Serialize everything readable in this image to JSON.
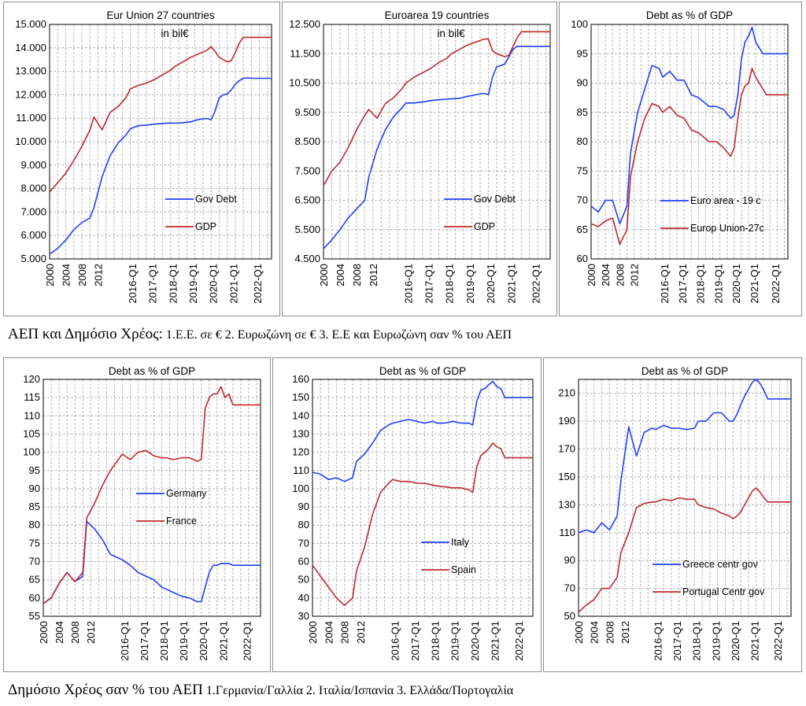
{
  "captions": {
    "row1_main": "ΑΕΠ και Δημόσιο Χρέος:",
    "row1_detail": "1.Ε.Ε. σε € 2. Ευρωζώνη σε € 3. Ε.Ε και Ευρωζώνη σαν % του ΑΕΠ",
    "row2_main": "Δημόσιο Χρέος σαν % του ΑΕΠ",
    "row2_detail": "1.Γερμανία/Γαλλία 2. Ιταλία/Ισπανία 3. Ελλάδα/Πορτογαλία"
  },
  "colors": {
    "blue": "#1f3fff",
    "red": "#c0282d",
    "grid": "#b5b5b5",
    "frame": "#8c8c8c"
  },
  "chart_data": [
    {
      "type": "line",
      "title": "Eur Union 27 countries",
      "subtitle": "in bil€",
      "x_tick_labels": [
        "2000",
        "2004",
        "2008",
        "2012",
        "2016-Q1",
        "2017-Q1",
        "2018-Q1",
        "2019-Q1",
        "2020-Q1",
        "2021-Q1",
        "2022-Q1"
      ],
      "x": [
        0,
        0.8,
        1.6,
        2.4,
        3.2,
        4,
        4.4,
        5.2,
        6,
        6.8,
        7.6,
        8,
        8.8,
        9.6,
        10.4,
        11.2,
        12,
        12.4,
        13.2,
        14,
        14.8,
        15.6,
        16,
        16.4,
        16.8,
        17.2,
        17.6,
        18,
        18.4,
        18.8,
        19.2,
        19.6,
        20,
        20.4,
        20.8,
        21.2,
        21.6,
        22
      ],
      "ylim": [
        5000,
        15000
      ],
      "y_ticks": [
        5000,
        6000,
        7000,
        8000,
        9000,
        10000,
        11000,
        12000,
        13000,
        14000,
        15000
      ],
      "y_tick_labels": [
        "5.000",
        "6.000",
        "7.000",
        "8.000",
        "9.000",
        "10.000",
        "11.000",
        "12.000",
        "13.000",
        "14.000",
        "15.000"
      ],
      "legend": "lower-right",
      "grid": true,
      "series": [
        {
          "name": "Gov Debt",
          "color": "#1f3fff",
          "values": [
            5200,
            5450,
            5800,
            6250,
            6550,
            6750,
            7200,
            8500,
            9400,
            9950,
            10300,
            10550,
            10680,
            10700,
            10750,
            10780,
            10800,
            10790,
            10810,
            10850,
            10950,
            10990,
            10930,
            11300,
            11850,
            12000,
            12030,
            12200,
            12450,
            12600,
            12700,
            12720,
            12700,
            12700,
            12700,
            12700,
            12700,
            12700
          ]
        },
        {
          "name": "GDP",
          "color": "#c0282d",
          "values": [
            7850,
            8250,
            8650,
            9200,
            9800,
            10500,
            11050,
            10500,
            11250,
            11500,
            11900,
            12250,
            12400,
            12500,
            12650,
            12850,
            13050,
            13200,
            13400,
            13600,
            13750,
            13900,
            14050,
            13850,
            13600,
            13500,
            13400,
            13450,
            13800,
            14200,
            14450,
            14450,
            14450,
            14450,
            14450,
            14450,
            14450,
            14450
          ]
        }
      ]
    },
    {
      "type": "line",
      "title": "Euroarea 19 countries",
      "subtitle": "in bil€",
      "x_tick_labels": [
        "2000",
        "2004",
        "2008",
        "2012",
        "2016-Q1",
        "2017-Q1",
        "2018-Q1",
        "2019-Q1",
        "2020-Q1",
        "2021-Q1",
        "2022-Q1"
      ],
      "x": [
        0,
        0.8,
        1.6,
        2.4,
        3.2,
        4,
        4.4,
        5.2,
        6,
        6.8,
        7.6,
        8,
        8.8,
        9.6,
        10.4,
        11.2,
        12,
        12.4,
        13.2,
        14,
        14.8,
        15.6,
        16,
        16.4,
        16.8,
        17.2,
        17.6,
        18,
        18.4,
        18.8,
        19.2,
        19.6,
        20,
        20.4,
        20.8,
        21.2,
        21.6,
        22
      ],
      "ylim": [
        4500,
        12500
      ],
      "y_ticks": [
        4500,
        5500,
        6500,
        7500,
        8500,
        9500,
        10500,
        11500,
        12500
      ],
      "y_tick_labels": [
        "4.500",
        "5.500",
        "6.500",
        "7.500",
        "8.500",
        "9.500",
        "10.500",
        "11.500",
        "12.500"
      ],
      "legend": "lower-right",
      "grid": true,
      "series": [
        {
          "name": "Gov Debt",
          "color": "#1f3fff",
          "values": [
            4850,
            5150,
            5500,
            5900,
            6200,
            6500,
            7300,
            8250,
            8900,
            9350,
            9650,
            9820,
            9820,
            9850,
            9900,
            9930,
            9950,
            9960,
            9980,
            10050,
            10100,
            10150,
            10100,
            10700,
            11050,
            11100,
            11150,
            11400,
            11650,
            11750,
            11750,
            11750,
            11750,
            11750,
            11750,
            11750,
            11750,
            11750
          ]
        },
        {
          "name": "GDP",
          "color": "#c0282d",
          "values": [
            7000,
            7500,
            7800,
            8300,
            8900,
            9400,
            9600,
            9300,
            9800,
            10000,
            10300,
            10500,
            10700,
            10850,
            11000,
            11200,
            11350,
            11500,
            11650,
            11800,
            11900,
            12000,
            12000,
            11600,
            11500,
            11450,
            11400,
            11450,
            11750,
            12050,
            12250,
            12250,
            12250,
            12250,
            12250,
            12250,
            12250,
            12250
          ]
        }
      ]
    },
    {
      "type": "line",
      "title": "Debt as % of GDP",
      "x_tick_labels": [
        "2000",
        "2004",
        "2008",
        "2012",
        "2016-Q1",
        "2017-Q1",
        "2018-Q1",
        "2019-Q1",
        "2020-Q1",
        "2021-Q1",
        "2022-Q1"
      ],
      "x": [
        0,
        0.8,
        1.6,
        2.4,
        3.2,
        4,
        4.4,
        5.2,
        6,
        6.8,
        7.6,
        8,
        8.8,
        9.6,
        10.4,
        11.2,
        12,
        12.4,
        13.2,
        14,
        14.8,
        15.6,
        16,
        16.4,
        16.8,
        17.2,
        17.6,
        18,
        18.4,
        18.8,
        19.2,
        19.6,
        20,
        20.4,
        20.8,
        21.2,
        21.6,
        22
      ],
      "ylim": [
        60,
        100
      ],
      "y_ticks": [
        60,
        65,
        70,
        75,
        80,
        85,
        90,
        95,
        100
      ],
      "y_tick_labels": [
        "60",
        "65",
        "70",
        "75",
        "80",
        "85",
        "90",
        "95",
        "100"
      ],
      "legend": "lower-right",
      "grid": true,
      "series": [
        {
          "name": "Euro area - 19 c",
          "color": "#1f3fff",
          "values": [
            69,
            68,
            70,
            70,
            66,
            69,
            78,
            85,
            89,
            93,
            92.5,
            91,
            92,
            90.5,
            90.5,
            88,
            87.5,
            87,
            86,
            86,
            85.5,
            84,
            84.5,
            88,
            94,
            97,
            98,
            99.5,
            97,
            96,
            95,
            95,
            95,
            95,
            95,
            95,
            95,
            95
          ]
        },
        {
          "name": "Europ Union-27c",
          "color": "#c0282d",
          "values": [
            66,
            65.5,
            66.5,
            67,
            62.5,
            65,
            74,
            80,
            84,
            86.5,
            86,
            85,
            86,
            84.5,
            84,
            82,
            81.5,
            81,
            80,
            80,
            79,
            77.5,
            79,
            84,
            88,
            89.5,
            90,
            92.5,
            91,
            90,
            89,
            88,
            88,
            88,
            88,
            88,
            88,
            88
          ]
        }
      ]
    },
    {
      "type": "line",
      "title": "Debt as % of GDP",
      "x_tick_labels": [
        "2000",
        "2004",
        "2008",
        "2012",
        "2016-Q1",
        "2017-Q1",
        "2018-Q1",
        "2019-Q1",
        "2020-Q1",
        "2021-Q1",
        "2022-Q1"
      ],
      "x": [
        0,
        0.8,
        1.6,
        2.4,
        3.2,
        4,
        4.4,
        5.2,
        6,
        6.8,
        7.6,
        8,
        8.8,
        9.6,
        10.4,
        11.2,
        12,
        12.4,
        13.2,
        14,
        14.8,
        15.6,
        16,
        16.4,
        16.8,
        17.2,
        17.6,
        18,
        18.4,
        18.8,
        19.2,
        19.6,
        20,
        20.4,
        20.8,
        21.2,
        21.6,
        22
      ],
      "ylim": [
        55,
        120
      ],
      "y_ticks": [
        55,
        60,
        65,
        70,
        75,
        80,
        85,
        90,
        95,
        100,
        105,
        110,
        115,
        120
      ],
      "y_tick_labels": [
        "55",
        "60",
        "65",
        "70",
        "75",
        "80",
        "85",
        "90",
        "95",
        "100",
        "105",
        "110",
        "115",
        "120"
      ],
      "legend": "center-right",
      "grid": true,
      "series": [
        {
          "name": "Germany",
          "color": "#1f3fff",
          "values": [
            58.5,
            60,
            64,
            67,
            64.5,
            66,
            81,
            79,
            76,
            72,
            71,
            70.5,
            69,
            67,
            66,
            65,
            63,
            62.5,
            61.5,
            60.5,
            60,
            59,
            59,
            63,
            67,
            69,
            69,
            69.5,
            69.5,
            69.5,
            69,
            69,
            69,
            69,
            69,
            69,
            69,
            69
          ]
        },
        {
          "name": "France",
          "color": "#c0282d",
          "values": [
            58.5,
            60,
            64,
            67,
            64.5,
            67,
            82,
            86,
            91,
            95,
            98,
            99.5,
            98,
            100,
            100.5,
            99,
            98.5,
            98.5,
            98,
            98.5,
            98.5,
            97.5,
            98,
            112,
            115,
            116,
            116,
            118,
            115,
            116,
            113,
            113,
            113,
            113,
            113,
            113,
            113,
            113
          ]
        }
      ]
    },
    {
      "type": "line",
      "title": "Debt as % of GDP",
      "x_tick_labels": [
        "2000",
        "2004",
        "2008",
        "2012",
        "2016-Q1",
        "2017-Q1",
        "2018-Q1",
        "2019-Q1",
        "2020-Q1",
        "2021-Q1",
        "2022-Q1"
      ],
      "x": [
        0,
        0.8,
        1.6,
        2.4,
        3.2,
        4,
        4.4,
        5.2,
        6,
        6.8,
        7.6,
        8,
        8.8,
        9.6,
        10.4,
        11.2,
        12,
        12.4,
        13.2,
        14,
        14.8,
        15.6,
        16,
        16.4,
        16.8,
        17.2,
        17.6,
        18,
        18.4,
        18.8,
        19.2,
        19.6,
        20,
        20.4,
        20.8,
        21.2,
        21.6,
        22
      ],
      "ylim": [
        30,
        160
      ],
      "y_ticks": [
        30,
        40,
        50,
        60,
        70,
        80,
        90,
        100,
        110,
        120,
        130,
        140,
        150,
        160
      ],
      "y_tick_labels": [
        "30",
        "40",
        "50",
        "60",
        "70",
        "80",
        "90",
        "100",
        "110",
        "120",
        "130",
        "140",
        "150",
        "160"
      ],
      "legend": "center-right",
      "grid": true,
      "series": [
        {
          "name": "Italy",
          "color": "#1f3fff",
          "values": [
            109,
            108,
            105,
            106,
            104,
            106,
            115,
            119,
            125,
            132,
            135,
            136,
            137,
            138,
            137,
            136,
            137,
            136,
            136,
            137,
            136,
            136,
            135,
            148,
            154,
            155,
            157,
            159,
            156,
            155,
            150,
            150,
            150,
            150,
            150,
            150,
            150,
            150
          ]
        },
        {
          "name": "Spain",
          "color": "#c0282d",
          "values": [
            58,
            52,
            46,
            40,
            36,
            40,
            55,
            68,
            86,
            98,
            103,
            105,
            104,
            104,
            103,
            103,
            102,
            101.5,
            101,
            100.5,
            100.5,
            99.5,
            98,
            112,
            118,
            120,
            122,
            125,
            123,
            122,
            117,
            117,
            117,
            117,
            117,
            117,
            117,
            117
          ]
        }
      ]
    },
    {
      "type": "line",
      "title": "Debt as % of GDP",
      "x_tick_labels": [
        "2000",
        "2004",
        "2008",
        "2012",
        "2016-Q1",
        "2017-Q1",
        "2018-Q1",
        "2019-Q1",
        "2020-Q1",
        "2021-Q1",
        "2022-Q1"
      ],
      "x": [
        0,
        0.8,
        1.6,
        2.4,
        3.2,
        4,
        4.4,
        5.2,
        6,
        6.8,
        7.6,
        8,
        8.8,
        9.6,
        10.4,
        11.2,
        12,
        12.4,
        13.2,
        14,
        14.8,
        15.6,
        16,
        16.4,
        16.8,
        17.2,
        17.6,
        18,
        18.4,
        18.8,
        19.2,
        19.6,
        20,
        20.4,
        20.8,
        21.2,
        21.6,
        22
      ],
      "ylim": [
        50,
        220
      ],
      "y_ticks": [
        50,
        70,
        90,
        110,
        130,
        150,
        170,
        190,
        210
      ],
      "y_tick_labels": [
        "50",
        "70",
        "90",
        "110",
        "130",
        "150",
        "170",
        "190",
        "210"
      ],
      "legend": "lower-right",
      "grid": true,
      "series": [
        {
          "name": "Greece centr gov",
          "color": "#1f3fff",
          "values": [
            110,
            112,
            110,
            117,
            112,
            122,
            148,
            186,
            165,
            182,
            185,
            184,
            187,
            185,
            185,
            184,
            185,
            190,
            190,
            196,
            196,
            190,
            190,
            195,
            202,
            208,
            213,
            218,
            220,
            217,
            212,
            206,
            206,
            206,
            206,
            206,
            206,
            206
          ]
        },
        {
          "name": "Portugal Centr gov",
          "color": "#c0282d",
          "values": [
            53,
            58,
            62,
            70,
            70,
            78,
            96,
            110,
            128,
            131,
            132,
            132,
            134,
            133,
            135,
            134,
            134,
            130,
            128,
            127,
            124,
            122,
            120,
            122,
            125,
            130,
            135,
            140,
            142,
            139,
            135,
            132,
            132,
            132,
            132,
            132,
            132,
            132
          ]
        }
      ]
    }
  ]
}
